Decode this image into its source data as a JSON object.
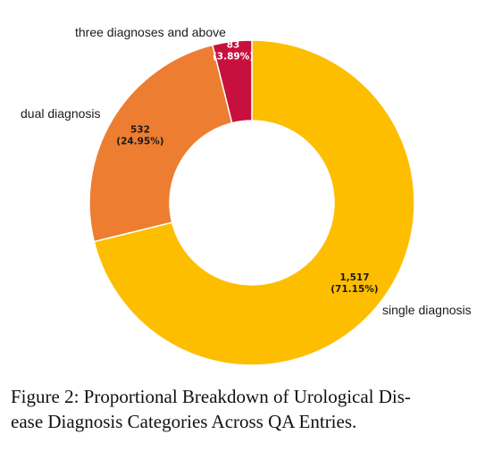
{
  "chart_data": {
    "type": "pie",
    "donut": true,
    "categories": [
      "single diagnosis",
      "dual diagnosis",
      "three diagnoses and above"
    ],
    "values": [
      1517,
      532,
      83
    ],
    "value_labels": [
      "1,517",
      "532",
      "83"
    ],
    "percent_labels": [
      "(71.15%)",
      "(24.95%)",
      "(3.89%)"
    ],
    "colors": [
      "#fdbe00",
      "#ed7d31",
      "#c8103f"
    ],
    "value_label_colors": [
      "#1a1a1a",
      "#1a1a1a",
      "#ffffff"
    ],
    "legend": "none"
  },
  "caption": {
    "line1": "Figure 2: Proportional Breakdown of Urological Dis-",
    "line2": "ease Diagnosis Categories Across QA Entries."
  }
}
